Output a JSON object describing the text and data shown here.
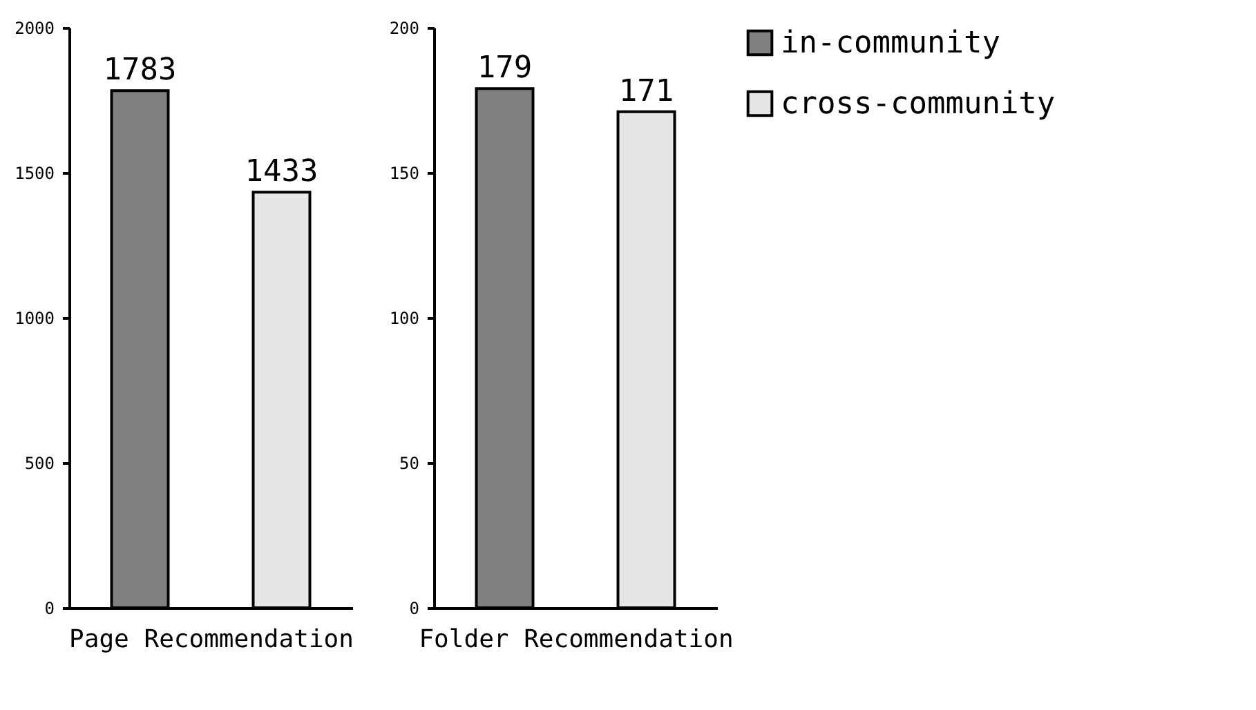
{
  "chart_data": [
    {
      "type": "bar",
      "xlabel": "Page Recommendation",
      "categories": [
        null
      ],
      "series": [
        {
          "color": "#808080",
          "values": [
            1783
          ]
        },
        {
          "color": "#e6e6e6",
          "values": [
            1433
          ]
        }
      ],
      "ylim": [
        0,
        2000
      ],
      "yticks": [
        0,
        500,
        1000,
        1500,
        2000
      ],
      "data_labels": true,
      "grid": false,
      "legend": false
    },
    {
      "type": "bar",
      "xlabel": "Folder Recommendation",
      "categories": [
        null
      ],
      "series": [
        {
          "name": "in-community",
          "color": "#808080",
          "values": [
            179
          ]
        },
        {
          "name": "cross-community",
          "color": "#e6e6e6",
          "values": [
            171
          ]
        }
      ],
      "ylim": [
        0,
        200
      ],
      "yticks": [
        0,
        50,
        100,
        150,
        200
      ],
      "data_labels": true,
      "grid": false,
      "legend": "right"
    }
  ]
}
